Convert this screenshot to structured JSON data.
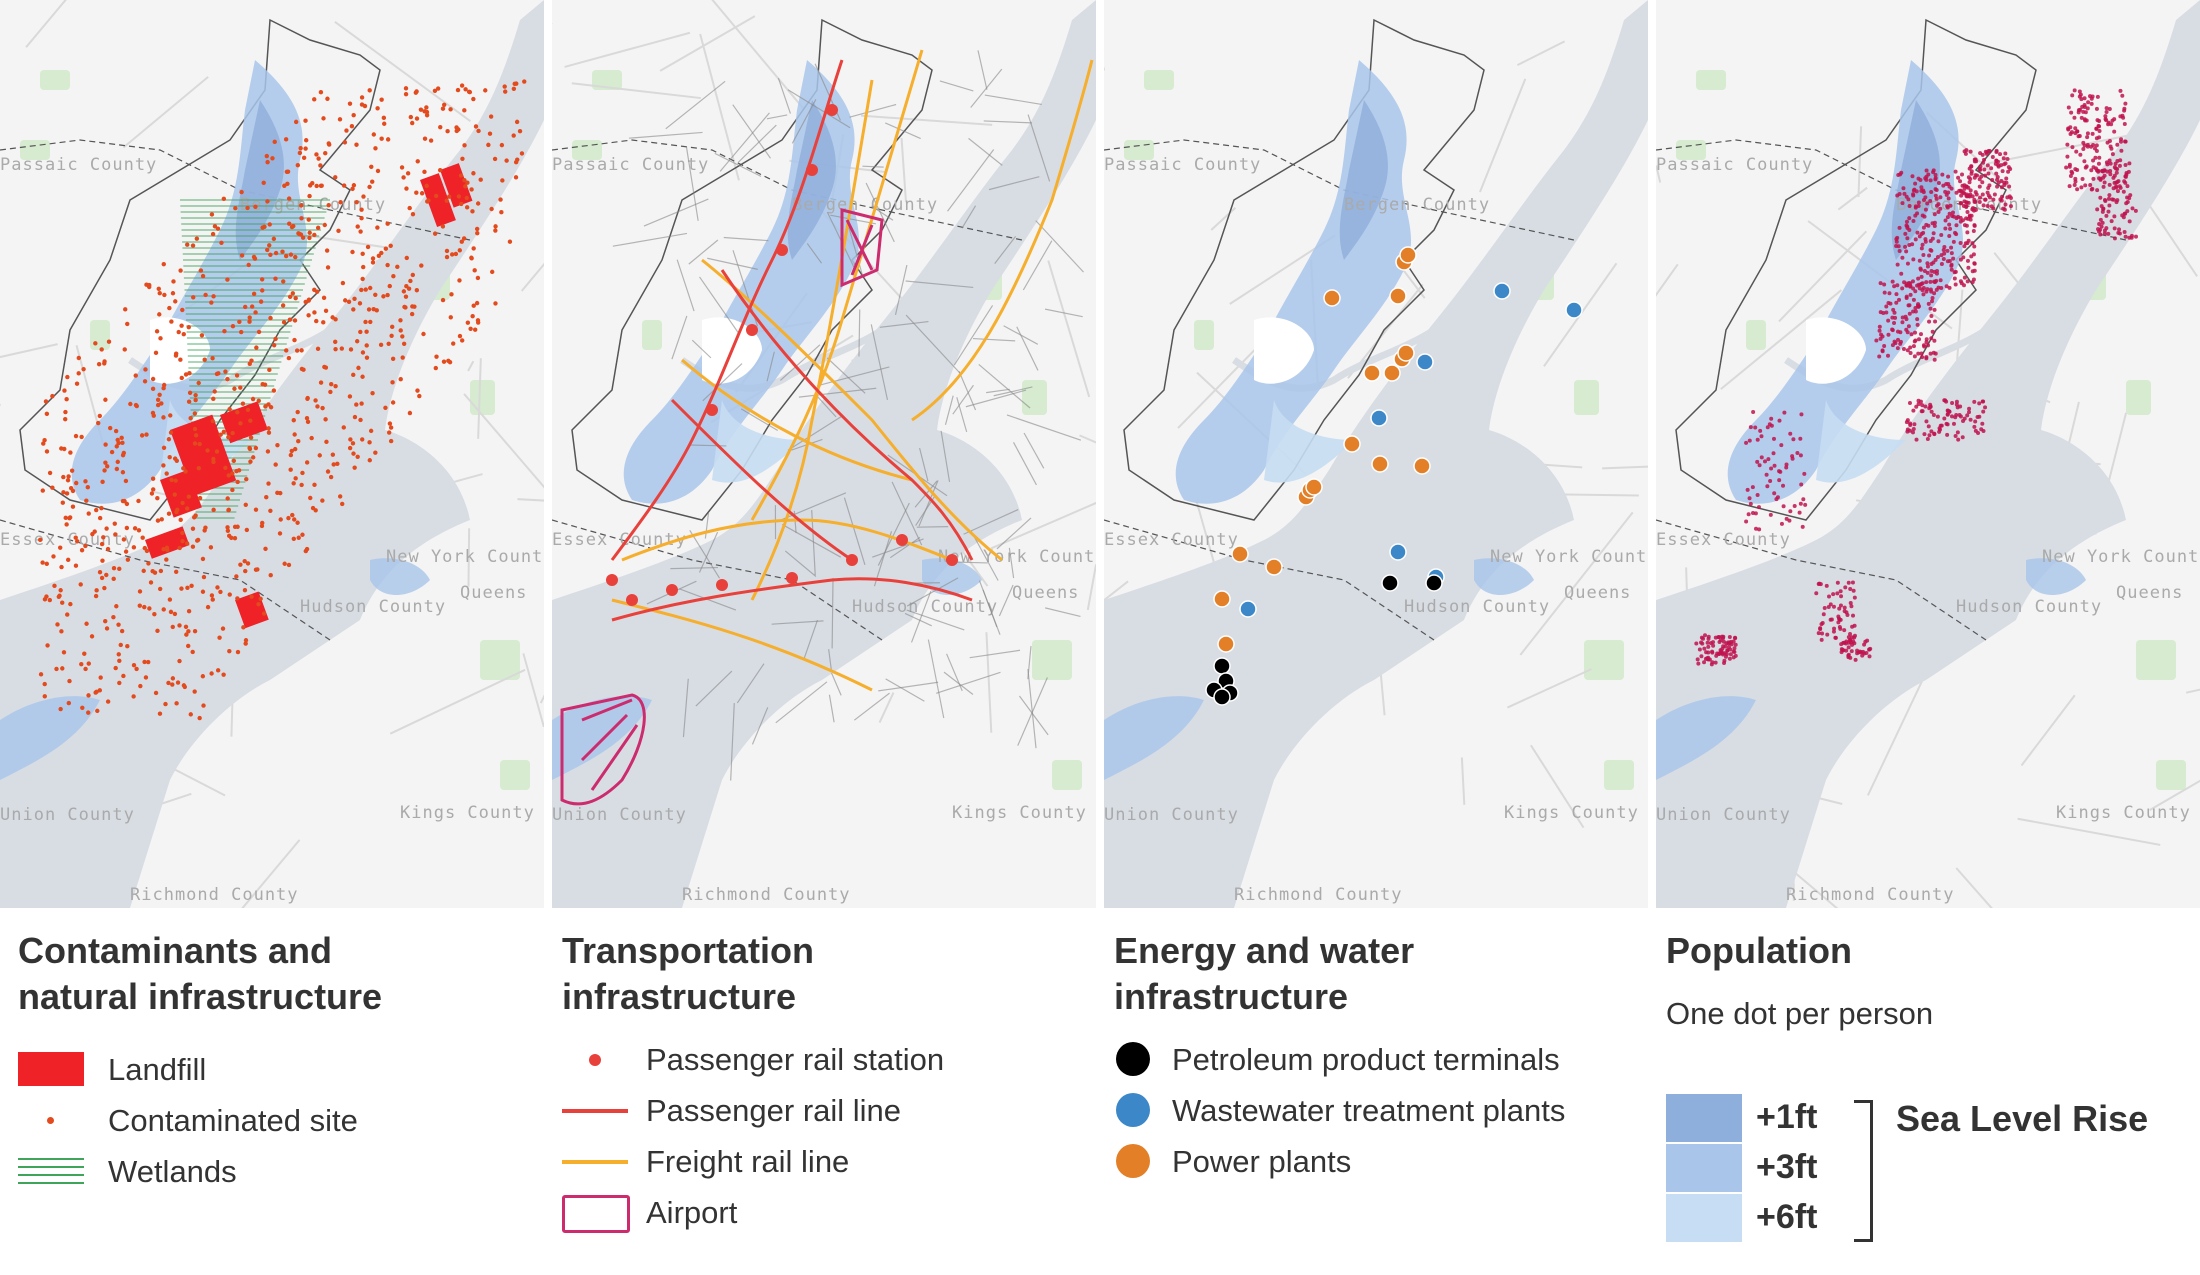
{
  "panels": [
    {
      "title_line1": "Contaminants and",
      "title_line2": "natural infrastructure",
      "legend": [
        "Landfill",
        "Contaminated site",
        "Wetlands"
      ]
    },
    {
      "title_line1": "Transportation",
      "title_line2": "infrastructure",
      "legend": [
        "Passenger rail station",
        "Passenger rail line",
        "Freight rail line",
        "Airport"
      ]
    },
    {
      "title_line1": "Energy and water",
      "title_line2": "infrastructure",
      "legend": [
        "Petroleum product terminals",
        "Wastewater treatment plants",
        "Power plants"
      ]
    },
    {
      "title_line1": "Population",
      "subtitle": "One dot per person"
    }
  ],
  "map_labels": {
    "passaic": "Passaic County",
    "bergen": "Bergen County",
    "essex": "Essex County",
    "new_york": "New York County",
    "queens": "Queens",
    "hudson": "Hudson County",
    "union": "Union County",
    "kings": "Kings County",
    "richmond": "Richmond County"
  },
  "sea_level_rise": {
    "title": "Sea Level Rise",
    "levels": [
      {
        "label": "+1ft",
        "color": "#8eaedb"
      },
      {
        "label": "+3ft",
        "color": "#a9c6ea"
      },
      {
        "label": "+6ft",
        "color": "#c6ddf3"
      }
    ]
  },
  "colors": {
    "landfill": "#ee2227",
    "contaminated": "#e34a1d",
    "wetlands": "#3fa55b",
    "passenger_rail": "#e8413b",
    "freight_rail": "#f6ae2d",
    "airport": "#cc2b6e",
    "petroleum": "#000000",
    "wastewater": "#3b87c8",
    "power": "#e27f27",
    "population": "#c0134e",
    "water": "#d8dde4",
    "land": "#f4f4f4",
    "flood": "#a9c6ea"
  }
}
